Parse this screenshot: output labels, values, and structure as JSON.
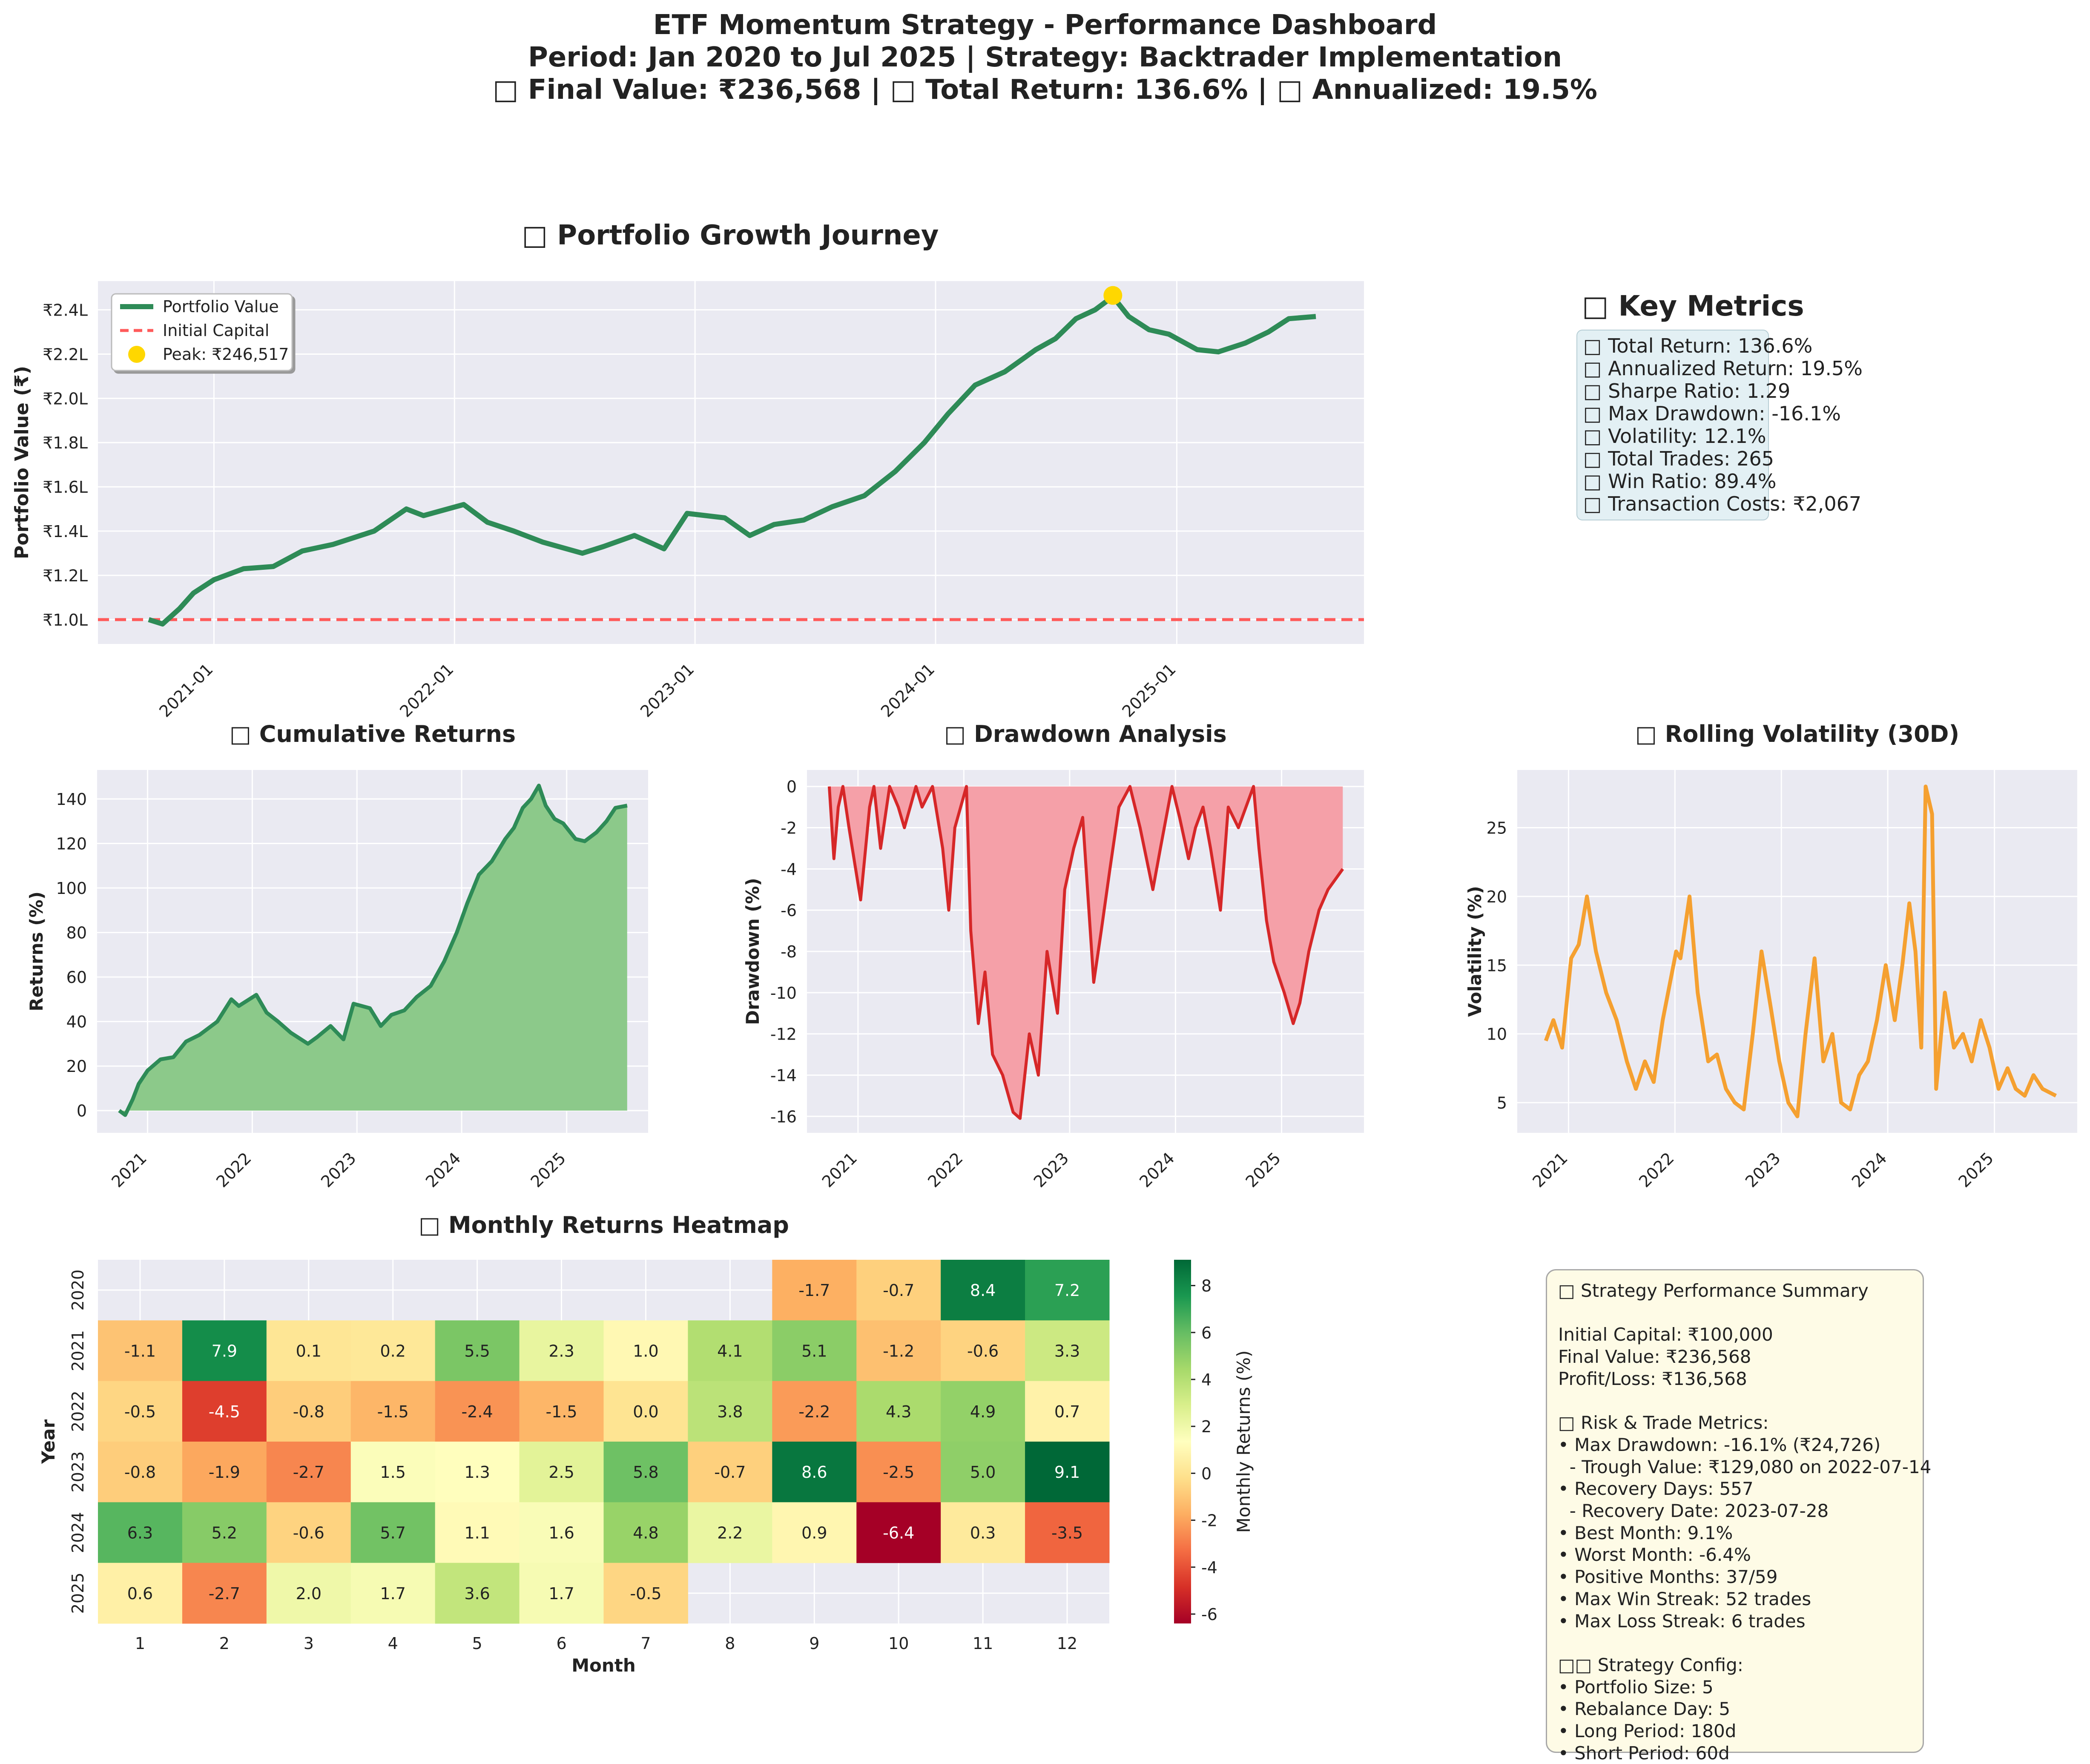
{
  "suptitle": [
    "ETF Momentum Strategy - Performance Dashboard",
    "Period: Jan 2020 to Jul 2025 | Strategy: Backtrader Implementation",
    "□ Final Value: ₹236,568 | □ Total Return: 136.6% | □ Annualized: 19.5%"
  ],
  "colors": {
    "panel_bg": "#eaeaf2",
    "grid": "#ffffff",
    "portfolio_line": "#2e8b57",
    "initial_capital_line": "#ff5a5a",
    "peak_marker": "#ffd700",
    "cumulative_line": "#2e8b57",
    "cumulative_fill": "#8cc98a",
    "drawdown_line": "#d62728",
    "drawdown_fill": "#f5a0a8",
    "volatility_line": "#f5a030",
    "heatmap_colormap": "RdYlGn"
  },
  "metrics": {
    "title": "□ Key Metrics",
    "lines": [
      "□ Total Return: 136.6%",
      "□ Annualized Return: 19.5%",
      "□ Sharpe Ratio: 1.29",
      "□ Max Drawdown: -16.1%",
      "□ Volatility: 12.1%",
      "□ Total Trades: 265",
      "□ Win Ratio: 89.4%",
      "□ Transaction Costs: ₹2,067"
    ]
  },
  "summary": {
    "lines": [
      "□ Strategy Performance Summary",
      "",
      "Initial Capital: ₹100,000",
      "Final Value: ₹236,568",
      "Profit/Loss: ₹136,568",
      "",
      "□ Risk & Trade Metrics:",
      "• Max Drawdown: -16.1% (₹24,726)",
      "  - Trough Value: ₹129,080 on 2022-07-14",
      "• Recovery Days: 557",
      "  - Recovery Date: 2023-07-28",
      "• Best Month: 9.1%",
      "• Worst Month: -6.4%",
      "• Positive Months: 37/59",
      "• Max Win Streak: 52 trades",
      "• Max Loss Streak: 6 trades",
      "",
      "□□ Strategy Config:",
      "• Portfolio Size: 5",
      "• Rebalance Day: 5",
      "• Long Period: 180d",
      "• Short Period: 60d"
    ]
  },
  "chart_data": [
    {
      "id": "portfolio",
      "type": "line",
      "title": "□ Portfolio Growth Journey",
      "ylabel": "Portfolio Value (₹)",
      "xlim": [
        "2020-07-09",
        "2025-10-12"
      ],
      "ylim": [
        0.89,
        2.53
      ],
      "yticks": [
        1.0,
        1.2,
        1.4,
        1.6,
        1.8,
        2.0,
        2.2,
        2.4
      ],
      "ytick_labels": [
        "₹1.0L",
        "₹1.2L",
        "₹1.4L",
        "₹1.6L",
        "₹1.8L",
        "₹2.0L",
        "₹2.2L",
        "₹2.4L"
      ],
      "xticks": [
        "2021-01-01",
        "2022-01-01",
        "2023-01-01",
        "2024-01-01",
        "2025-01-01"
      ],
      "xtick_labels": [
        "2021-01",
        "2022-01",
        "2023-01",
        "2024-01",
        "2025-01"
      ],
      "legend": [
        "Portfolio Value",
        "Initial Capital",
        "Peak: ₹246,517"
      ],
      "legend_position": "upper-left",
      "grid": true,
      "series": [
        {
          "name": "Portfolio Value",
          "x": [
            "2020-09-24",
            "2020-10-15",
            "2020-11-10",
            "2020-12-01",
            "2021-01-01",
            "2021-02-15",
            "2021-04-01",
            "2021-05-15",
            "2021-07-01",
            "2021-09-01",
            "2021-10-20",
            "2021-11-15",
            "2022-01-15",
            "2022-02-20",
            "2022-04-01",
            "2022-05-15",
            "2022-07-14",
            "2022-08-15",
            "2022-10-01",
            "2022-11-15",
            "2022-12-20",
            "2023-02-15",
            "2023-03-25",
            "2023-05-01",
            "2023-06-15",
            "2023-07-28",
            "2023-09-15",
            "2023-11-01",
            "2023-12-15",
            "2024-01-20",
            "2024-03-01",
            "2024-04-15",
            "2024-06-01",
            "2024-07-01",
            "2024-08-01",
            "2024-08-30",
            "2024-09-26",
            "2024-10-20",
            "2024-11-20",
            "2024-12-20",
            "2025-02-01",
            "2025-03-05",
            "2025-04-15",
            "2025-05-20",
            "2025-06-20",
            "2025-07-31"
          ],
          "y": [
            1.0,
            0.98,
            1.05,
            1.12,
            1.18,
            1.23,
            1.24,
            1.31,
            1.34,
            1.4,
            1.5,
            1.47,
            1.52,
            1.44,
            1.4,
            1.35,
            1.3,
            1.33,
            1.38,
            1.32,
            1.48,
            1.46,
            1.38,
            1.43,
            1.45,
            1.51,
            1.56,
            1.67,
            1.8,
            1.93,
            2.06,
            2.12,
            2.22,
            2.27,
            2.36,
            2.4,
            2.46,
            2.37,
            2.31,
            2.29,
            2.22,
            2.21,
            2.25,
            2.3,
            2.36,
            2.37
          ]
        },
        {
          "name": "Initial Capital",
          "value": 1.0
        },
        {
          "name": "Peak: ₹246,517",
          "x": "2024-09-26",
          "y": 2.46517
        }
      ]
    },
    {
      "id": "cumret",
      "type": "area",
      "title": "□ Cumulative Returns",
      "ylabel": "Returns (%)",
      "xlim": [
        "2020-07-09",
        "2025-10-12"
      ],
      "ylim": [
        -10,
        153
      ],
      "yticks": [
        0,
        20,
        40,
        60,
        80,
        100,
        120,
        140
      ],
      "xticks": [
        "2021-01-01",
        "2022-01-01",
        "2023-01-01",
        "2024-01-01",
        "2025-01-01"
      ],
      "xtick_labels": [
        "2021",
        "2022",
        "2023",
        "2024",
        "2025"
      ],
      "grid": true,
      "x": [
        "2020-09-24",
        "2020-10-15",
        "2020-11-10",
        "2020-12-01",
        "2021-01-01",
        "2021-02-15",
        "2021-04-01",
        "2021-05-15",
        "2021-07-01",
        "2021-09-01",
        "2021-10-20",
        "2021-11-15",
        "2022-01-15",
        "2022-02-20",
        "2022-04-01",
        "2022-05-15",
        "2022-07-14",
        "2022-08-15",
        "2022-10-01",
        "2022-11-15",
        "2022-12-20",
        "2023-02-15",
        "2023-03-25",
        "2023-05-01",
        "2023-06-15",
        "2023-07-28",
        "2023-09-15",
        "2023-11-01",
        "2023-12-15",
        "2024-01-20",
        "2024-03-01",
        "2024-04-15",
        "2024-06-01",
        "2024-07-01",
        "2024-08-01",
        "2024-08-30",
        "2024-09-26",
        "2024-10-20",
        "2024-11-20",
        "2024-12-20",
        "2025-02-01",
        "2025-03-05",
        "2025-04-15",
        "2025-05-20",
        "2025-06-20",
        "2025-07-31"
      ],
      "y": [
        0,
        -2,
        5,
        12,
        18,
        23,
        24,
        31,
        34,
        40,
        50,
        47,
        52,
        44,
        40,
        35,
        30,
        33,
        38,
        32,
        48,
        46,
        38,
        43,
        45,
        51,
        56,
        67,
        80,
        93,
        106,
        112,
        122,
        127,
        136,
        140,
        146,
        137,
        131,
        129,
        122,
        121,
        125,
        130,
        136,
        137
      ]
    },
    {
      "id": "drawdown",
      "type": "area",
      "title": "□ Drawdown Analysis",
      "ylabel": "Drawdown (%)",
      "xlim": [
        "2020-07-09",
        "2025-10-12"
      ],
      "ylim": [
        -16.8,
        0.8
      ],
      "yticks": [
        0,
        -2,
        -4,
        -6,
        -8,
        -10,
        -12,
        -14,
        -16
      ],
      "xticks": [
        "2021-01-01",
        "2022-01-01",
        "2023-01-01",
        "2024-01-01",
        "2025-01-01"
      ],
      "xtick_labels": [
        "2021",
        "2022",
        "2023",
        "2024",
        "2025"
      ],
      "grid": true,
      "x": [
        "2020-09-24",
        "2020-10-10",
        "2020-10-25",
        "2020-11-10",
        "2020-12-01",
        "2021-01-10",
        "2021-02-10",
        "2021-02-25",
        "2021-03-20",
        "2021-04-20",
        "2021-05-20",
        "2021-06-10",
        "2021-07-20",
        "2021-08-10",
        "2021-09-15",
        "2021-10-20",
        "2021-11-10",
        "2021-12-01",
        "2022-01-10",
        "2022-01-25",
        "2022-02-20",
        "2022-03-15",
        "2022-04-10",
        "2022-05-15",
        "2022-06-20",
        "2022-07-14",
        "2022-08-15",
        "2022-09-15",
        "2022-10-15",
        "2022-11-20",
        "2022-12-15",
        "2023-01-15",
        "2023-02-15",
        "2023-03-25",
        "2023-04-20",
        "2023-05-20",
        "2023-06-20",
        "2023-07-28",
        "2023-09-01",
        "2023-10-15",
        "2023-11-10",
        "2023-12-20",
        "2024-01-15",
        "2024-02-15",
        "2024-03-10",
        "2024-04-05",
        "2024-05-01",
        "2024-06-04",
        "2024-07-01",
        "2024-08-05",
        "2024-09-26",
        "2024-10-15",
        "2024-11-10",
        "2024-12-05",
        "2025-01-10",
        "2025-02-10",
        "2025-03-05",
        "2025-04-05",
        "2025-05-10",
        "2025-06-10",
        "2025-07-31"
      ],
      "y": [
        0,
        -3.5,
        -1,
        0,
        -2,
        -5.5,
        -1,
        0,
        -3,
        0,
        -1,
        -2,
        0,
        -1,
        0,
        -3,
        -6,
        -2,
        0,
        -7,
        -11.5,
        -9,
        -13,
        -14,
        -15.8,
        -16.1,
        -12,
        -14,
        -8,
        -11,
        -5,
        -3,
        -1.5,
        -9.5,
        -7,
        -4,
        -1,
        0,
        -2,
        -5,
        -3,
        0,
        -1.5,
        -3.5,
        -2,
        -1,
        -3,
        -6,
        -1,
        -2,
        0,
        -3,
        -6.5,
        -8.5,
        -10,
        -11.5,
        -10.5,
        -8,
        -6,
        -5,
        -4
      ]
    },
    {
      "id": "volatility",
      "type": "line",
      "title": "□ Rolling Volatility (30D)",
      "ylabel": "Volatility (%)",
      "xlim": [
        "2020-07-09",
        "2025-10-12"
      ],
      "ylim": [
        2.8,
        29.2
      ],
      "yticks": [
        5,
        10,
        15,
        20,
        25
      ],
      "xticks": [
        "2021-01-01",
        "2022-01-01",
        "2023-01-01",
        "2024-01-01",
        "2025-01-01"
      ],
      "xtick_labels": [
        "2021",
        "2022",
        "2023",
        "2024",
        "2025"
      ],
      "grid": true,
      "x": [
        "2020-10-15",
        "2020-11-10",
        "2020-12-10",
        "2021-01-10",
        "2021-02-05",
        "2021-03-05",
        "2021-04-05",
        "2021-05-10",
        "2021-06-15",
        "2021-07-20",
        "2021-08-20",
        "2021-09-20",
        "2021-10-20",
        "2021-11-20",
        "2022-01-05",
        "2022-01-20",
        "2022-02-20",
        "2022-03-20",
        "2022-04-25",
        "2022-05-25",
        "2022-06-25",
        "2022-07-25",
        "2022-08-25",
        "2022-09-25",
        "2022-10-25",
        "2022-11-25",
        "2022-12-25",
        "2023-01-25",
        "2023-02-25",
        "2023-03-25",
        "2023-04-25",
        "2023-05-25",
        "2023-06-25",
        "2023-07-25",
        "2023-08-25",
        "2023-09-25",
        "2023-10-25",
        "2023-11-25",
        "2023-12-25",
        "2024-01-25",
        "2024-02-20",
        "2024-03-15",
        "2024-04-05",
        "2024-04-25",
        "2024-05-10",
        "2024-06-01",
        "2024-06-15",
        "2024-07-15",
        "2024-08-15",
        "2024-09-15",
        "2024-10-15",
        "2024-11-15",
        "2024-12-15",
        "2025-01-15",
        "2025-02-15",
        "2025-03-15",
        "2025-04-15",
        "2025-05-15",
        "2025-06-15",
        "2025-07-31"
      ],
      "y": [
        9.5,
        11,
        9,
        15.5,
        16.5,
        20,
        16,
        13,
        11,
        8,
        6,
        8,
        6.5,
        11,
        16,
        15.5,
        20,
        13,
        8,
        8.5,
        6,
        5,
        4.5,
        10,
        16,
        12,
        8,
        5,
        4,
        10,
        15.5,
        8,
        10,
        5,
        4.5,
        7,
        8,
        11,
        15,
        11,
        15,
        19.5,
        16,
        9,
        28,
        26,
        6,
        13,
        9,
        10,
        8,
        11,
        9,
        6,
        7.5,
        6,
        5.5,
        7,
        6,
        5.5
      ]
    },
    {
      "id": "heatmap",
      "type": "heatmap",
      "title": "□ Monthly Returns Heatmap",
      "xlabel": "Month",
      "ylabel": "Year",
      "colorbar_label": "Monthly Returns (%)",
      "colorbar_ticks": [
        8,
        6,
        4,
        2,
        0,
        -2,
        -4,
        -6
      ],
      "vmin": -6.4,
      "vmax": 9.1,
      "colormap": "RdYlGn",
      "x_labels": [
        "1",
        "2",
        "3",
        "4",
        "5",
        "6",
        "7",
        "8",
        "9",
        "10",
        "11",
        "12"
      ],
      "y_labels": [
        "2020",
        "2021",
        "2022",
        "2023",
        "2024",
        "2025"
      ],
      "values": [
        [
          null,
          null,
          null,
          null,
          null,
          null,
          null,
          null,
          -1.7,
          -0.7,
          8.4,
          7.2
        ],
        [
          -1.1,
          7.9,
          0.1,
          0.2,
          5.5,
          2.3,
          1.0,
          4.1,
          5.1,
          -1.2,
          -0.6,
          3.3
        ],
        [
          -0.5,
          -4.5,
          -0.8,
          -1.5,
          -2.4,
          -1.5,
          0.0,
          3.8,
          -2.2,
          4.3,
          4.9,
          0.7
        ],
        [
          -0.8,
          -1.9,
          -2.7,
          1.5,
          1.3,
          2.5,
          5.8,
          -0.7,
          8.6,
          -2.5,
          5.0,
          9.1
        ],
        [
          6.3,
          5.2,
          -0.6,
          5.7,
          1.1,
          1.6,
          4.8,
          2.2,
          0.9,
          -6.4,
          0.3,
          -3.5
        ],
        [
          0.6,
          -2.7,
          2.0,
          1.7,
          3.6,
          1.7,
          -0.5,
          null,
          null,
          null,
          null,
          null
        ]
      ]
    }
  ]
}
